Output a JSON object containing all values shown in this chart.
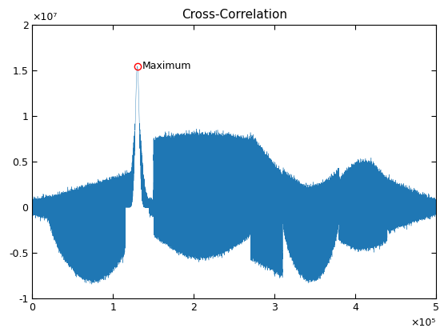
{
  "title": "Cross-Correlation",
  "xlim": [
    0,
    500000
  ],
  "ylim": [
    -10000000.0,
    20000000.0
  ],
  "xticks": [
    0,
    100000,
    200000,
    300000,
    400000,
    500000
  ],
  "xtick_labels": [
    "0",
    "1",
    "2",
    "3",
    "4",
    "5"
  ],
  "xscale_label": "×10⁵",
  "yticks": [
    -10000000.0,
    -5000000.0,
    0,
    5000000.0,
    10000000.0,
    15000000.0,
    20000000.0
  ],
  "ytick_labels": [
    "-1",
    "-0.5",
    "0",
    "0.5",
    "1",
    "1.5",
    "2"
  ],
  "yscale_label": "×10⁷",
  "line_color": "#1f77b4",
  "marker_color": "red",
  "max_x": 130000,
  "max_y": 15500000.0,
  "max_label": "Maximum",
  "n_points": 500000,
  "seed": 7
}
